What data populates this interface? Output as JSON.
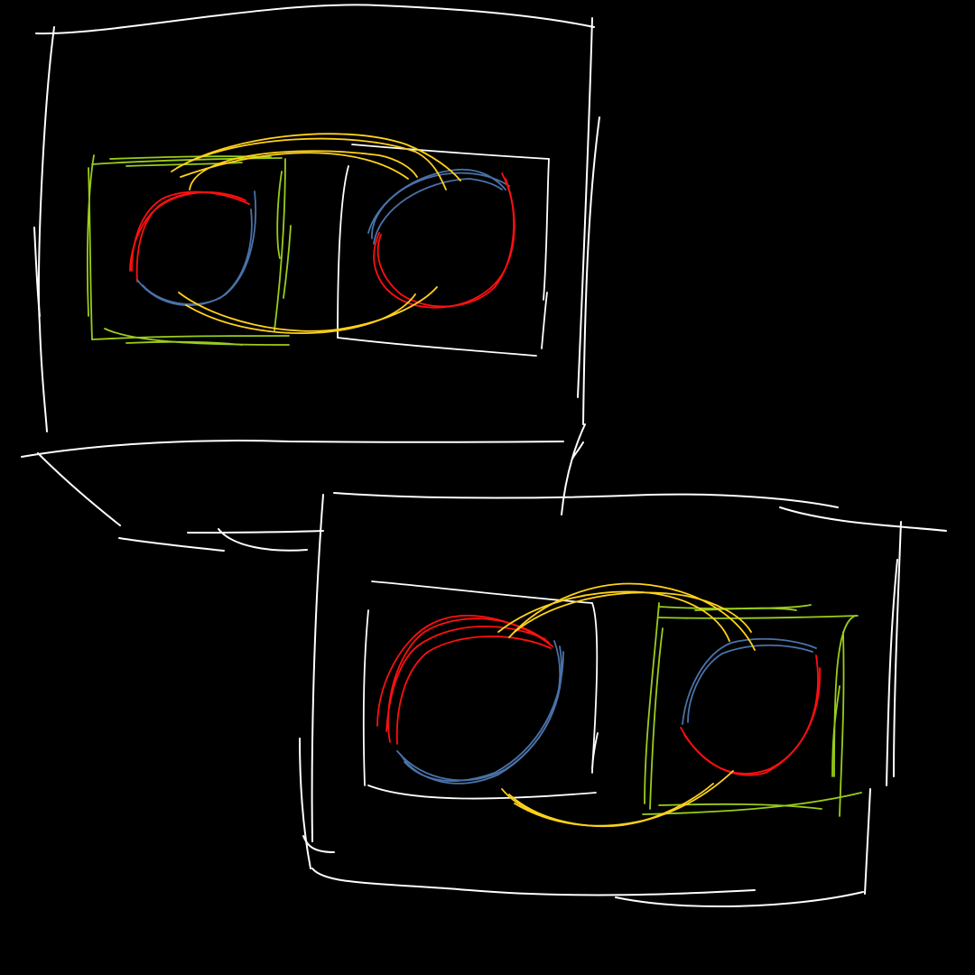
{
  "drawing": {
    "background": "#000000",
    "colors": {
      "frame": "#ffffff",
      "green": "#9acd1a",
      "yellow": "#ffd21a",
      "red": "#ff1010",
      "blue": "#4a72a8"
    },
    "panels": [
      {
        "name": "panel-top-left",
        "left_box_color": "green",
        "right_box_color": "white",
        "left_circle_colors": [
          "red",
          "blue"
        ],
        "right_circle_colors": [
          "blue",
          "red"
        ],
        "connector_color": "yellow"
      },
      {
        "name": "panel-bottom-right",
        "left_box_color": "white",
        "right_box_color": "green",
        "left_circle_colors": [
          "red",
          "blue"
        ],
        "right_circle_colors": [
          "blue",
          "red"
        ],
        "connector_color": "yellow"
      }
    ]
  }
}
